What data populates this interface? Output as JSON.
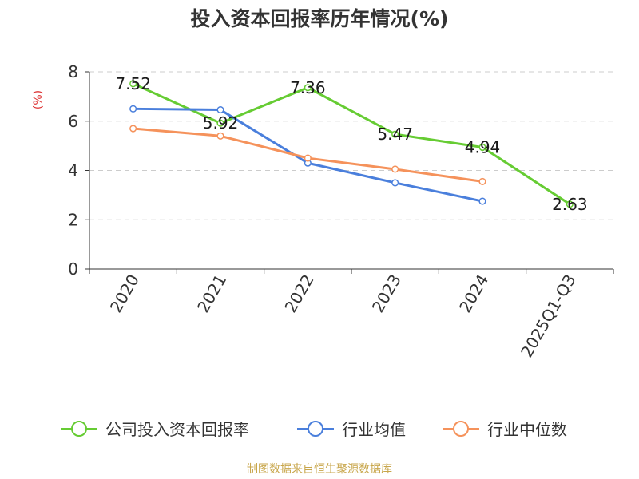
{
  "chart_data": {
    "type": "line",
    "title": "投入资本回报率历年情况(%)",
    "ylabel": "(%)",
    "xlabel": "",
    "categories": [
      "2020",
      "2021",
      "2022",
      "2023",
      "2024",
      "2025Q1-Q3"
    ],
    "ylim": [
      0,
      8
    ],
    "yticks": [
      0,
      2,
      4,
      6,
      8
    ],
    "grid": true,
    "legend_position": "bottom",
    "series": [
      {
        "name": "公司投入资本回报率",
        "color": "#66cc33",
        "values": [
          7.52,
          5.92,
          7.36,
          5.47,
          4.94,
          2.63
        ],
        "labels": [
          "7.52",
          "5.92",
          "7.36",
          "5.47",
          "4.94",
          "2.63"
        ]
      },
      {
        "name": "行业均值",
        "color": "#4a7fdc",
        "values": [
          6.5,
          6.46,
          4.3,
          3.5,
          2.75,
          null
        ]
      },
      {
        "name": "行业中位数",
        "color": "#f5925b",
        "values": [
          5.7,
          5.4,
          4.5,
          4.05,
          3.55,
          null
        ]
      }
    ]
  },
  "footer": {
    "source": "制图数据来自恒生聚源数据库"
  }
}
